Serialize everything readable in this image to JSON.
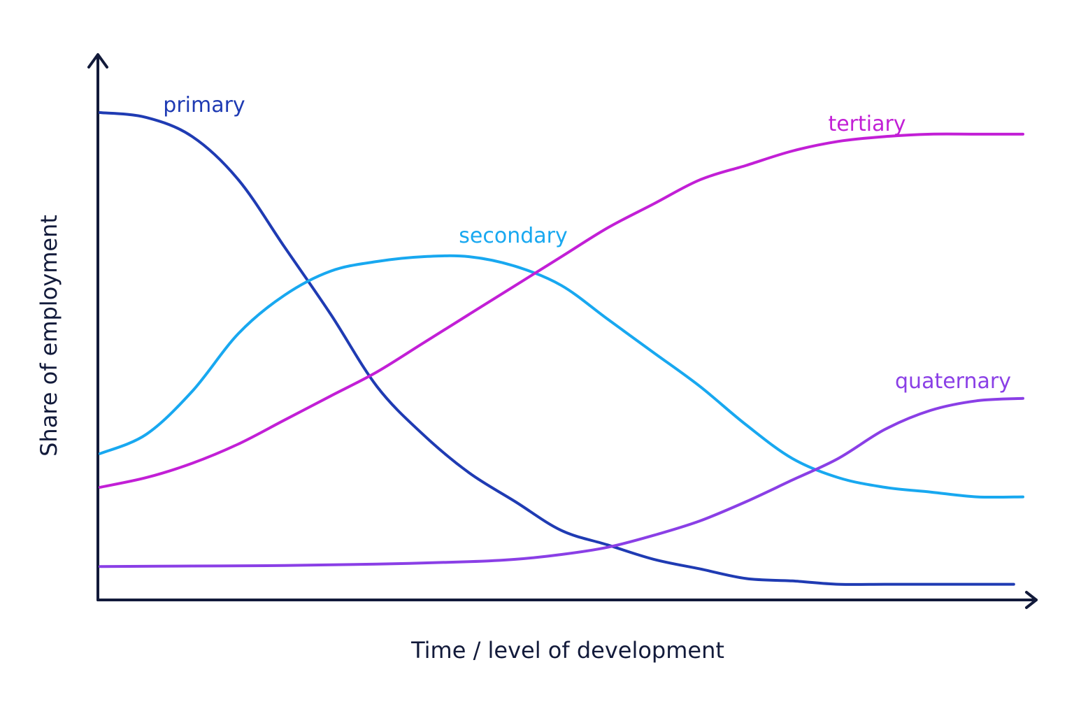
{
  "chart_data": {
    "type": "line",
    "title": "",
    "xlabel": "Time / level of development",
    "ylabel": "Share of employment",
    "xlim": [
      0,
      100
    ],
    "ylim": [
      0,
      100
    ],
    "grid": false,
    "legend": "inline",
    "series": [
      {
        "name": "primary",
        "color": "#1f3bb3",
        "x": [
          0,
          5,
          10,
          15,
          20,
          25,
          30,
          35,
          40,
          45,
          50,
          55,
          60,
          65,
          70,
          75,
          80,
          85,
          90,
          95,
          99
        ],
        "y": [
          100,
          99,
          95,
          86,
          72,
          58,
          43,
          33,
          25,
          19,
          13,
          10,
          7,
          5,
          3,
          2.5,
          1.8,
          1.8,
          1.8,
          1.8,
          1.8
        ]
      },
      {
        "name": "secondary",
        "color": "#18a8f0",
        "x": [
          0,
          5,
          10,
          15,
          20,
          25,
          30,
          35,
          40,
          45,
          50,
          55,
          60,
          65,
          70,
          75,
          80,
          85,
          90,
          95,
          100
        ],
        "y": [
          29,
          33,
          42,
          54,
          62,
          67,
          69,
          70,
          70,
          68,
          64,
          57,
          50,
          43,
          35,
          28,
          24,
          22,
          21,
          20,
          20
        ]
      },
      {
        "name": "tertiary",
        "color": "#c21fd6",
        "x": [
          0,
          5,
          10,
          15,
          20,
          25,
          30,
          35,
          40,
          45,
          50,
          55,
          60,
          65,
          70,
          75,
          80,
          85,
          90,
          95,
          100
        ],
        "y": [
          22,
          24,
          27,
          31,
          36,
          41,
          46,
          52,
          58,
          64,
          70,
          76,
          81,
          86,
          89,
          92,
          94,
          95,
          95.5,
          95.5,
          95.5
        ]
      },
      {
        "name": "quaternary",
        "color": "#8a3fe6",
        "x": [
          0,
          10,
          20,
          30,
          40,
          45,
          50,
          55,
          60,
          65,
          70,
          75,
          80,
          85,
          90,
          95,
          100
        ],
        "y": [
          5.5,
          5.6,
          5.7,
          6,
          6.5,
          7,
          8,
          9.5,
          12,
          15,
          19,
          23.5,
          28,
          34,
          38,
          40,
          40.5
        ]
      }
    ]
  }
}
